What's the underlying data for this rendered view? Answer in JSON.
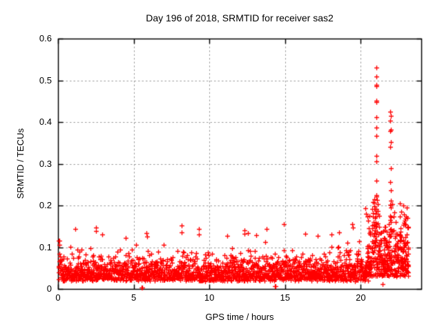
{
  "figure": {
    "background": "#ffffff",
    "text_color": "#000000",
    "border_color": "#000000"
  },
  "chart_data": {
    "type": "scatter",
    "title": "Day 196 of 2018, SRMTID for receiver sas2",
    "xlabel": "GPS time / hours",
    "ylabel": "SRMTID / TECUs",
    "xlim": [
      0,
      24
    ],
    "ylim": [
      0,
      0.6
    ],
    "xticks": [
      0,
      5,
      10,
      15,
      20
    ],
    "xtick_labels": [
      "0",
      "5",
      "10",
      "15",
      "20"
    ],
    "yticks": [
      0,
      0.1,
      0.2,
      0.3,
      0.4,
      0.5,
      0.6
    ],
    "ytick_labels": [
      "0",
      "0.1",
      "0.2",
      "0.3",
      "0.4",
      "0.5",
      "0.6"
    ],
    "grid": {
      "visible": true,
      "style": "dashed",
      "color": "#999999"
    },
    "legend": null,
    "series": [
      {
        "name": "SRMTID",
        "marker": "plus",
        "color": "#ff0000",
        "marker_size": 7
      }
    ],
    "summary": "Dense scatter (~2200 red plus markers) of SRMTID vs GPS time; quiet baseline 0.02-0.15 TECUs from 0-20 h, disturbed interval 20-23.2 h with a spike column near 21 h peaking at 0.53 and a second column near 22 h peaking at 0.43; data end near 23.2 h.",
    "notable_points": [
      [
        21.02,
        0.53
      ],
      [
        21.04,
        0.509
      ],
      [
        21.03,
        0.49
      ],
      [
        21.05,
        0.486
      ],
      [
        21.04,
        0.452
      ],
      [
        21.03,
        0.448
      ],
      [
        21.05,
        0.412
      ],
      [
        21.04,
        0.386
      ],
      [
        21.03,
        0.367
      ],
      [
        21.05,
        0.319
      ],
      [
        21.03,
        0.306
      ],
      [
        21.04,
        0.259
      ],
      [
        21.03,
        0.224
      ],
      [
        21.02,
        0.221
      ],
      [
        21.04,
        0.186
      ],
      [
        21.95,
        0.425
      ],
      [
        21.97,
        0.415
      ],
      [
        21.96,
        0.404
      ],
      [
        21.97,
        0.381
      ],
      [
        21.95,
        0.378
      ],
      [
        21.98,
        0.352
      ],
      [
        21.96,
        0.34
      ],
      [
        21.97,
        0.289
      ],
      [
        21.95,
        0.257
      ],
      [
        21.97,
        0.237
      ],
      [
        21.97,
        0.212
      ],
      [
        21.96,
        0.201
      ],
      [
        21.98,
        0.172
      ],
      [
        21.95,
        0.165
      ],
      [
        0.08,
        0.115
      ],
      [
        0.1,
        0.105
      ],
      [
        1.15,
        0.143
      ],
      [
        2.5,
        0.147
      ],
      [
        2.52,
        0.139
      ],
      [
        2.9,
        0.131
      ],
      [
        4.45,
        0.122
      ],
      [
        5.85,
        0.134
      ],
      [
        5.88,
        0.125
      ],
      [
        8.15,
        0.152
      ],
      [
        8.18,
        0.136
      ],
      [
        9.3,
        0.143
      ],
      [
        9.33,
        0.131
      ],
      [
        11.2,
        0.128
      ],
      [
        12.3,
        0.14
      ],
      [
        12.32,
        0.133
      ],
      [
        12.55,
        0.134
      ],
      [
        13.1,
        0.129
      ],
      [
        13.8,
        0.143
      ],
      [
        14.9,
        0.156
      ],
      [
        16.35,
        0.133
      ],
      [
        17.15,
        0.127
      ],
      [
        18.05,
        0.131
      ],
      [
        18.55,
        0.135
      ],
      [
        19.45,
        0.155
      ],
      [
        19.5,
        0.147
      ],
      [
        20.3,
        0.193
      ],
      [
        20.35,
        0.18
      ],
      [
        20.88,
        0.198
      ],
      [
        20.9,
        0.215
      ],
      [
        20.92,
        0.207
      ],
      [
        22.6,
        0.205
      ],
      [
        5.52,
        0.004
      ],
      [
        5.56,
        0.004
      ],
      [
        9.7,
        0.018
      ],
      [
        12.3,
        0.023
      ],
      [
        14.32,
        0.006
      ],
      [
        14.38,
        0.006
      ],
      [
        19.62,
        0.018
      ],
      [
        20.48,
        0.02
      ],
      [
        21.45,
        0.012
      ]
    ],
    "point_cloud_generator": {
      "seed": 196,
      "hour_amp": [
        1.15,
        1.0,
        1.1,
        0.9,
        0.95,
        1.0,
        1.05,
        0.9,
        1.05,
        1.0,
        0.85,
        1.0,
        1.1,
        1.05,
        1.0,
        1.0,
        1.05,
        1.0,
        1.05,
        1.15,
        1.35,
        1.0,
        1.0,
        1.0
      ],
      "baseline": {
        "t_start": 0.03,
        "t_end": 20.4,
        "n": 1750,
        "t_jitter": 0.012,
        "floor": 0.02,
        "sigma": 0.027,
        "spike_prob": 0.022,
        "spike_extra": 0.055,
        "ymax": 0.158
      },
      "elevated": {
        "t_start": 20.4,
        "t_end": 23.15,
        "n": 430,
        "floor": 0.03,
        "sigma": 0.048,
        "ymax": 0.215
      },
      "columns": [
        {
          "t": 20.95,
          "w": 0.18,
          "amp": 1.3
        },
        {
          "t": 21.95,
          "w": 0.1,
          "amp": 1.0
        },
        {
          "t": 22.55,
          "w": 0.22,
          "amp": 0.6
        },
        {
          "t": 23.0,
          "w": 0.12,
          "amp": 0.7
        }
      ]
    }
  }
}
